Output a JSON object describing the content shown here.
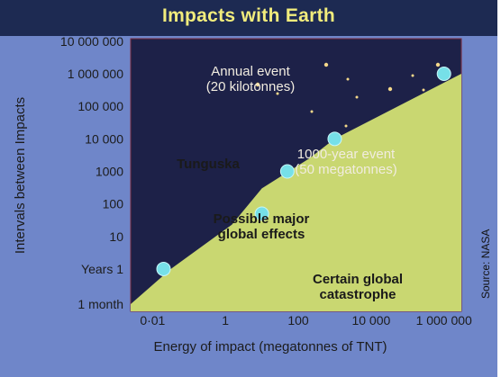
{
  "chart_data": {
    "type": "scatter",
    "title": "Impacts with Earth",
    "xlabel": "Energy of impact (megatonnes of TNT)",
    "ylabel": "Intervals between Impacts",
    "x_scale": "log",
    "y_scale": "log",
    "x_ticks": [
      {
        "value": 0.01,
        "label": "0·01"
      },
      {
        "value": 1,
        "label": "1"
      },
      {
        "value": 100,
        "label": "100"
      },
      {
        "value": 10000,
        "label": "10 000"
      },
      {
        "value": 1000000,
        "label": "1 000 000"
      }
    ],
    "y_ticks": [
      {
        "value": 0.0833,
        "label": "1 month"
      },
      {
        "value": 1,
        "label": "Years 1"
      },
      {
        "value": 10,
        "label": "10"
      },
      {
        "value": 100,
        "label": "100"
      },
      {
        "value": 1000,
        "label": "1000"
      },
      {
        "value": 10000,
        "label": "10 000"
      },
      {
        "value": 100000,
        "label": "100 000"
      },
      {
        "value": 1000000,
        "label": "1 000 000"
      },
      {
        "value": 10000000,
        "label": "10 000 000"
      }
    ],
    "xlim": [
      0.0025,
      3000000
    ],
    "ylim": [
      0.05,
      12000000
    ],
    "boundary": {
      "x": [
        0.0025,
        0.0316,
        1.5,
        10,
        200,
        1000,
        3000000
      ],
      "y": [
        0.0833,
        1,
        23,
        300,
        2500,
        10000,
        1000000
      ]
    },
    "points": [
      {
        "x": 0.02,
        "y": 1,
        "label": "Annual event (20 kilotonnes)"
      },
      {
        "x": 10,
        "y": 50,
        "label": "Tunguska"
      },
      {
        "x": 50,
        "y": 1000,
        "label": "1000-year event (50 megatonnes)"
      },
      {
        "x": 1000,
        "y": 10000,
        "label": "Possible major global effects"
      },
      {
        "x": 1000000,
        "y": 1000000,
        "label": "Certain global catastrophe"
      }
    ],
    "annotations": {
      "annual": [
        "Annual event",
        "(20 kilotonnes)"
      ],
      "tunguska": [
        "Tunguska"
      ],
      "thousand": [
        "1000-year event",
        "(50 megatonnes)"
      ],
      "major": [
        "Possible major",
        "global effects"
      ],
      "certain": [
        "Certain global",
        "catastrophe"
      ]
    },
    "colors": {
      "frame": "#6f86c9",
      "title_bar": "#1d2a52",
      "title_text": "#f1ec7c",
      "sky": "#1d2148",
      "ground": "#c9d771",
      "point": "#76e0e8",
      "stars": "#f4d88a"
    }
  },
  "source": "Source: NASA"
}
